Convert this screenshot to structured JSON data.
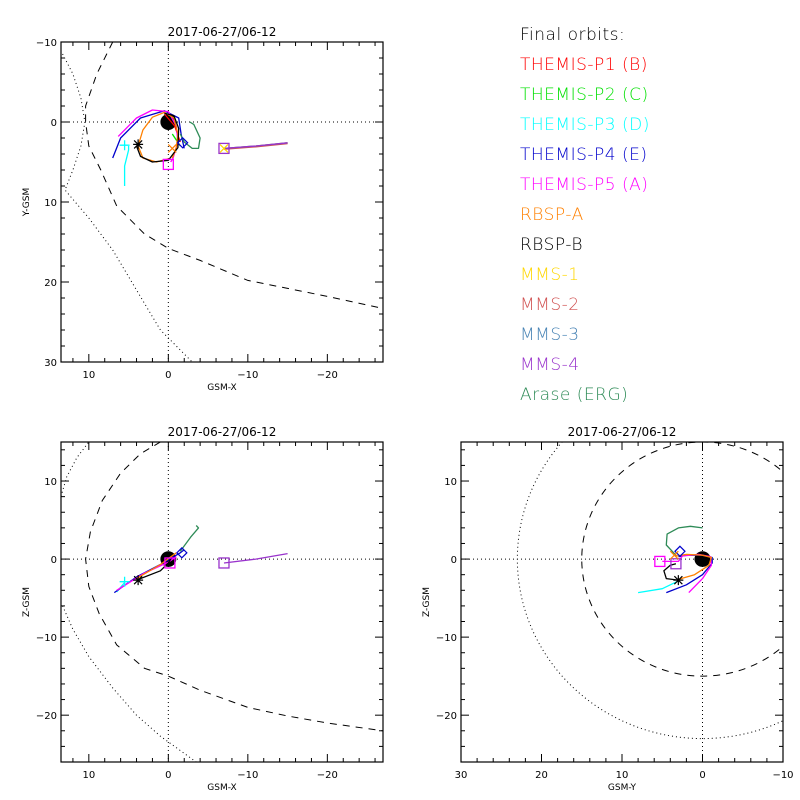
{
  "legend": {
    "title": "Final orbits:",
    "entries": [
      {
        "label": "THEMIS-P1 (B)",
        "color": "#ff0000"
      },
      {
        "label": "THEMIS-P2 (C)",
        "color": "#00e000"
      },
      {
        "label": "THEMIS-P3 (D)",
        "color": "#00ffff"
      },
      {
        "label": "THEMIS-P4 (E)",
        "color": "#0000cc"
      },
      {
        "label": "THEMIS-P5 (A)",
        "color": "#ff00ff"
      },
      {
        "label": "RBSP-A",
        "color": "#ff8000"
      },
      {
        "label": "RBSP-B",
        "color": "#000000"
      },
      {
        "label": "MMS-1",
        "color": "#ffd700"
      },
      {
        "label": "MMS-2",
        "color": "#d05050"
      },
      {
        "label": "MMS-3",
        "color": "#4682b4"
      },
      {
        "label": "MMS-4",
        "color": "#9933cc"
      },
      {
        "label": "Arase (ERG)",
        "color": "#2e8b57"
      }
    ]
  },
  "chart_data": [
    {
      "type": "line",
      "title": "2017-06-27/06-12",
      "xlabel": "GSM-X",
      "ylabel": "Y-GSM",
      "xlim": [
        13.5,
        -27
      ],
      "ylim": [
        -10,
        30
      ],
      "xticks": [
        10,
        0,
        -10,
        -20
      ],
      "xtick_labels": [
        "10",
        "0",
        "-10",
        "-20"
      ],
      "yticks": [
        -10,
        0,
        10,
        20,
        30
      ],
      "ytick_labels": [
        "-10",
        "0",
        "10",
        "20",
        "30"
      ],
      "grid": "dotted zero lines",
      "boundaries": {
        "magnetopause_dotted": [
          [
            13.3,
            -8.5
          ],
          [
            12,
            -6
          ],
          [
            11,
            -3
          ],
          [
            10.5,
            0
          ],
          [
            11,
            3
          ],
          [
            12,
            6
          ],
          [
            13,
            8.5
          ],
          [
            10,
            12
          ],
          [
            7,
            16
          ],
          [
            4,
            21
          ],
          [
            1,
            26
          ],
          [
            -3,
            30
          ]
        ],
        "bow_shock_dashed": [
          [
            7,
            -10
          ],
          [
            9,
            -6
          ],
          [
            10.4,
            -2
          ],
          [
            10.4,
            0
          ],
          [
            10,
            3
          ],
          [
            8.5,
            6
          ],
          [
            6.5,
            10.5
          ],
          [
            3,
            14
          ],
          [
            0,
            15.8
          ],
          [
            -4,
            17.3
          ],
          [
            -10,
            19.8
          ],
          [
            -15,
            20.8
          ],
          [
            -20,
            21.8
          ],
          [
            -27,
            23.3
          ]
        ]
      },
      "series": [
        {
          "name": "THEMIS-P1 (B)",
          "points": [
            [
              0.5,
              -1
            ],
            [
              -0.8,
              0.5
            ],
            [
              -1.5,
              2.5
            ]
          ]
        },
        {
          "name": "THEMIS-P2 (C)",
          "points": [
            [
              -0.5,
              1.5
            ],
            [
              -1.5,
              3
            ]
          ]
        },
        {
          "name": "THEMIS-P3 (D)",
          "points": [
            [
              5.5,
              8
            ],
            [
              5.5,
              5.5
            ],
            [
              5,
              3.5
            ],
            [
              5,
              3
            ]
          ]
        },
        {
          "name": "THEMIS-P4 (E)",
          "points": [
            [
              7,
              4.5
            ],
            [
              6,
              2
            ],
            [
              3.5,
              -0.5
            ],
            [
              0.5,
              -1.4
            ],
            [
              -1.3,
              -0.5
            ],
            [
              -1.6,
              1.5
            ],
            [
              -2,
              3.3
            ]
          ]
        },
        {
          "name": "THEMIS-P5 (A)",
          "points": [
            [
              6.3,
              1.8
            ],
            [
              4,
              -0.5
            ],
            [
              2,
              -1.5
            ],
            [
              0,
              -1.3
            ],
            [
              -1,
              0.5
            ],
            [
              -1.2,
              2.5
            ],
            [
              -0.6,
              4.5
            ],
            [
              -0.3,
              5
            ]
          ]
        },
        {
          "name": "RBSP-A",
          "points": [
            [
              -0.5,
              4.5
            ],
            [
              -1,
              3.2
            ],
            [
              -1.2,
              1.5
            ],
            [
              -0.7,
              -0.5
            ],
            [
              0.5,
              -1.2
            ],
            [
              2,
              -0.6
            ],
            [
              3.2,
              1
            ],
            [
              3.8,
              3
            ],
            [
              3.2,
              4.5
            ],
            [
              1.5,
              5
            ],
            [
              0,
              4.6
            ]
          ]
        },
        {
          "name": "RBSP-B",
          "points": [
            [
              4,
              3
            ],
            [
              3.5,
              4.3
            ],
            [
              2,
              5
            ],
            [
              0,
              4.8
            ],
            [
              -1.2,
              3.2
            ],
            [
              -1.3,
              0.8
            ],
            [
              -0.7,
              -0.8
            ],
            [
              0.5,
              -1.1
            ]
          ]
        },
        {
          "name": "MMS-1",
          "points": [
            [
              -7,
              3.3
            ],
            [
              -11,
              3
            ],
            [
              -15,
              2.6
            ]
          ]
        },
        {
          "name": "MMS-2",
          "points": [
            [
              -7,
              3.4
            ],
            [
              -11,
              3.1
            ],
            [
              -15,
              2.7
            ]
          ]
        },
        {
          "name": "MMS-3",
          "points": [
            [
              -7,
              3.3
            ],
            [
              -11,
              3
            ],
            [
              -15,
              2.6
            ]
          ]
        },
        {
          "name": "MMS-4",
          "points": [
            [
              -7,
              3.3
            ],
            [
              -11,
              3
            ],
            [
              -15,
              2.6
            ]
          ]
        },
        {
          "name": "Arase (ERG)",
          "points": [
            [
              -1.5,
              1.5
            ],
            [
              -2,
              2.5
            ],
            [
              -3,
              3.3
            ],
            [
              -3.8,
              3.3
            ],
            [
              -4,
              2
            ],
            [
              -3.2,
              0.3
            ],
            [
              -2.7,
              0
            ]
          ]
        }
      ],
      "markers": [
        {
          "series": "RBSP-B",
          "symbol": "asterisk",
          "pos": [
            3.8,
            2.8
          ]
        },
        {
          "series": "THEMIS-P3 (D)",
          "symbol": "plus",
          "pos": [
            5.5,
            2.9
          ]
        },
        {
          "series": "THEMIS-P5 (A)",
          "symbol": "square",
          "pos": [
            0,
            5.3
          ]
        },
        {
          "series": "THEMIS-P4 (E)",
          "symbol": "diamond",
          "pos": [
            -1.8,
            2.6
          ]
        },
        {
          "series": "RBSP-A",
          "symbol": "x",
          "pos": [
            -0.5,
            3.3
          ]
        },
        {
          "series": "MMS-4",
          "symbol": "square",
          "pos": [
            -7,
            3.3
          ]
        },
        {
          "series": "MMS-1",
          "symbol": "x",
          "pos": [
            -7,
            3.3
          ]
        }
      ],
      "earth": {
        "center": [
          0,
          0
        ],
        "radius": 1
      }
    },
    {
      "type": "line",
      "title": "2017-06-27/06-12",
      "xlabel": "GSM-X",
      "ylabel": "Z-GSM",
      "xlim": [
        13.5,
        -27
      ],
      "ylim": [
        -26,
        15
      ],
      "xticks": [
        10,
        0,
        -10,
        -20
      ],
      "xtick_labels": [
        "10",
        "0",
        "-10",
        "-20"
      ],
      "yticks": [
        10,
        0,
        -10,
        -20
      ],
      "ytick_labels": [
        "10",
        "0",
        "-10",
        "-20"
      ],
      "grid": "dotted zero lines",
      "boundaries": {
        "magnetopause_dotted": [
          [
            13.5,
            8
          ],
          [
            12.8,
            10.5
          ],
          [
            11.5,
            13
          ],
          [
            10,
            15
          ],
          [
            13.3,
            -6
          ],
          [
            12,
            -9
          ],
          [
            10,
            -12.5
          ],
          [
            7,
            -16.5
          ],
          [
            4,
            -20
          ],
          [
            1,
            -22.7
          ],
          [
            -3.5,
            -26
          ]
        ],
        "bow_shock_dashed": [
          [
            1,
            15
          ],
          [
            3.5,
            13.5
          ],
          [
            6,
            11
          ],
          [
            8.3,
            7.5
          ],
          [
            9.8,
            3.5
          ],
          [
            10.4,
            0
          ],
          [
            10,
            -3.5
          ],
          [
            8.7,
            -7
          ],
          [
            6.5,
            -11
          ],
          [
            3,
            -14
          ],
          [
            0,
            -15
          ],
          [
            -4,
            -16.8
          ],
          [
            -10,
            -19
          ],
          [
            -15,
            -20.1
          ],
          [
            -20,
            -21
          ],
          [
            -27,
            -22
          ]
        ]
      },
      "series": [
        {
          "name": "THEMIS-P3 (D)",
          "points": [
            [
              6.5,
              -4.2
            ],
            [
              5.5,
              -3
            ]
          ]
        },
        {
          "name": "THEMIS-P4 (E)",
          "points": [
            [
              6.8,
              -4.3
            ],
            [
              4,
              -2.3
            ],
            [
              1,
              -0.7
            ],
            [
              -1.5,
              0.8
            ],
            [
              -2,
              1.2
            ]
          ]
        },
        {
          "name": "THEMIS-P5 (A)",
          "points": [
            [
              6.5,
              -4
            ],
            [
              3,
              -1.8
            ],
            [
              0,
              -0.4
            ],
            [
              -1,
              0.3
            ]
          ]
        },
        {
          "name": "RBSP-A",
          "points": [
            [
              4,
              -2.5
            ],
            [
              1,
              -0.7
            ],
            [
              -1,
              0.8
            ]
          ]
        },
        {
          "name": "RBSP-B",
          "points": [
            [
              4,
              -2.7
            ],
            [
              1,
              -1.5
            ],
            [
              0,
              -0.5
            ],
            [
              -0.3,
              0
            ]
          ]
        },
        {
          "name": "MMS-4",
          "points": [
            [
              -7,
              -0.5
            ],
            [
              -11,
              0
            ],
            [
              -15,
              0.7
            ]
          ]
        },
        {
          "name": "Arase (ERG)",
          "points": [
            [
              -1.5,
              1
            ],
            [
              -2.8,
              2.8
            ],
            [
              -3.8,
              4
            ],
            [
              -3.5,
              4.3
            ]
          ]
        }
      ],
      "markers": [
        {
          "series": "RBSP-B",
          "symbol": "asterisk",
          "pos": [
            3.8,
            -2.7
          ]
        },
        {
          "series": "THEMIS-P3 (D)",
          "symbol": "plus",
          "pos": [
            5.5,
            -2.9
          ]
        },
        {
          "series": "THEMIS-P5 (A)",
          "symbol": "square",
          "pos": [
            -0.2,
            -0.5
          ]
        },
        {
          "series": "THEMIS-P4 (E)",
          "symbol": "diamond",
          "pos": [
            -1.7,
            0.8
          ]
        },
        {
          "series": "MMS-4",
          "symbol": "square",
          "pos": [
            -7,
            -0.5
          ]
        }
      ],
      "earth": {
        "center": [
          0,
          0
        ],
        "radius": 1
      }
    },
    {
      "type": "line",
      "title": "2017-06-27/06-12",
      "xlabel": "GSM-Y",
      "ylabel": "Z-GSM",
      "xlim": [
        30,
        -10
      ],
      "ylim": [
        -26,
        15
      ],
      "xticks": [
        30,
        20,
        10,
        0,
        -10
      ],
      "xtick_labels": [
        "30",
        "20",
        "10",
        "0",
        "-10"
      ],
      "yticks": [
        10,
        0,
        -10,
        -20
      ],
      "ytick_labels": [
        "10",
        "0",
        "-10",
        "-20"
      ],
      "grid": "dotted zero lines",
      "boundaries": {
        "magnetopause_circle_dotted_radius": 23,
        "bow_shock_circle_dashed_radius": 15
      },
      "series": [
        {
          "name": "THEMIS-P3 (D)",
          "points": [
            [
              8,
              -4.3
            ],
            [
              5,
              -3.8
            ],
            [
              3,
              -2.8
            ]
          ]
        },
        {
          "name": "THEMIS-P4 (E)",
          "points": [
            [
              4.5,
              -4.3
            ],
            [
              2,
              -3.3
            ],
            [
              0,
              -2
            ],
            [
              -1.2,
              -0.5
            ],
            [
              -1.2,
              0.2
            ],
            [
              0,
              0.5
            ],
            [
              2,
              0.5
            ],
            [
              3,
              0.3
            ]
          ]
        },
        {
          "name": "THEMIS-P5 (A)",
          "points": [
            [
              1.7,
              -4.3
            ],
            [
              0,
              -2.5
            ],
            [
              -1.1,
              -0.8
            ],
            [
              -1,
              0.3
            ],
            [
              0.5,
              0.6
            ],
            [
              2.5,
              0.4
            ],
            [
              3,
              -0.3
            ],
            [
              5,
              -0.3
            ]
          ]
        },
        {
          "name": "RBSP-A",
          "points": [
            [
              3,
              -2.6
            ],
            [
              1,
              -2
            ],
            [
              -0.8,
              -0.8
            ],
            [
              -1.1,
              0.2
            ],
            [
              0,
              0.5
            ],
            [
              2,
              0.6
            ],
            [
              3.2,
              0.4
            ],
            [
              3.8,
              1
            ]
          ]
        },
        {
          "name": "RBSP-B",
          "points": [
            [
              3,
              -2.7
            ],
            [
              4.5,
              -2.5
            ],
            [
              4.8,
              -1.5
            ],
            [
              4,
              -0.8
            ],
            [
              3.3,
              -0.6
            ]
          ]
        },
        {
          "name": "Arase (ERG)",
          "points": [
            [
              3.3,
              0.5
            ],
            [
              4.5,
              1.8
            ],
            [
              4.4,
              3.2
            ],
            [
              3,
              4
            ],
            [
              1.5,
              4.2
            ],
            [
              0,
              4
            ]
          ]
        }
      ],
      "markers": [
        {
          "series": "RBSP-B",
          "symbol": "asterisk",
          "pos": [
            3,
            -2.7
          ]
        },
        {
          "series": "THEMIS-P5 (A)",
          "symbol": "square",
          "pos": [
            5.3,
            -0.3
          ]
        },
        {
          "series": "MMS-4",
          "symbol": "square",
          "pos": [
            3.3,
            -0.6
          ]
        },
        {
          "series": "THEMIS-P4 (E)",
          "symbol": "diamond",
          "pos": [
            2.8,
            1.0
          ]
        },
        {
          "series": "RBSP-A",
          "symbol": "x",
          "pos": [
            3.5,
            0.5
          ]
        }
      ],
      "earth": {
        "center": [
          0,
          0
        ],
        "radius": 1
      }
    }
  ]
}
